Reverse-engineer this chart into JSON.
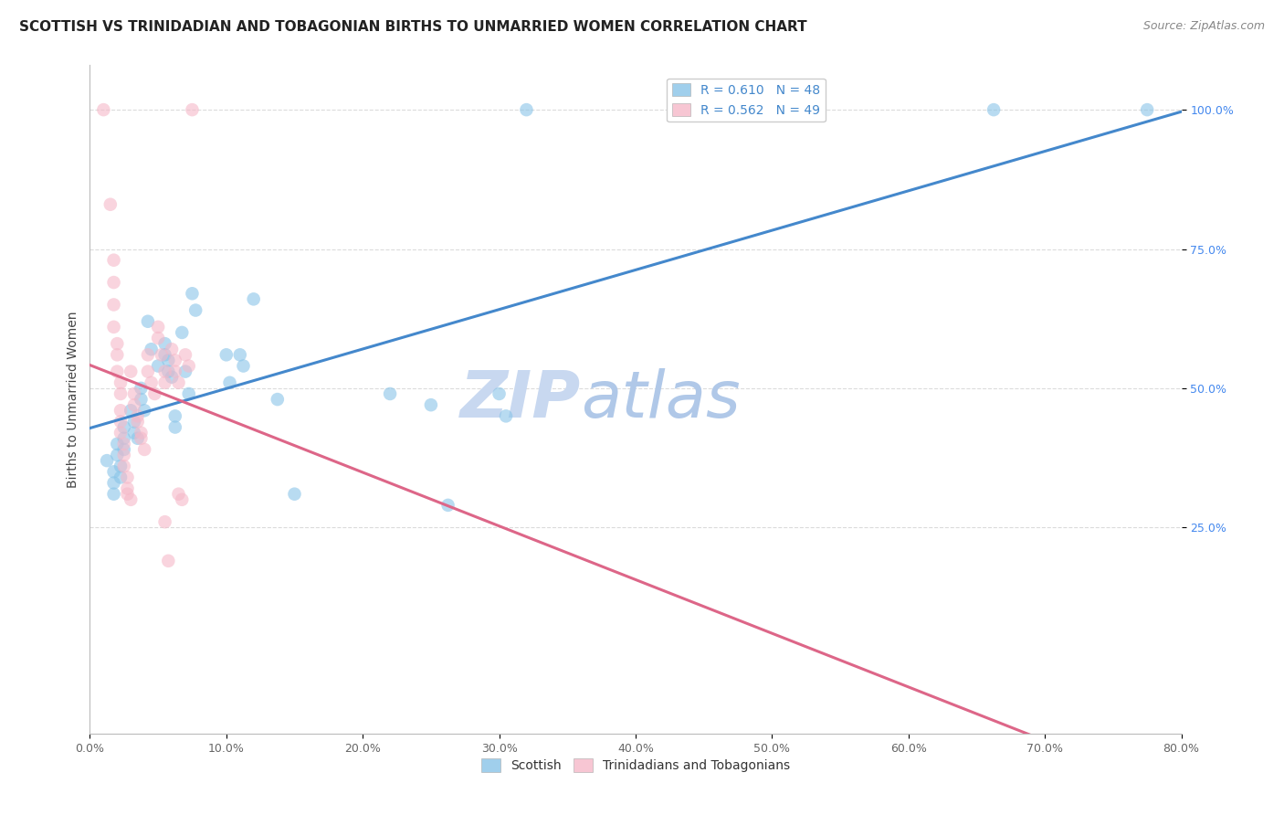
{
  "title": "SCOTTISH VS TRINIDADIAN AND TOBAGONIAN BIRTHS TO UNMARRIED WOMEN CORRELATION CHART",
  "source": "Source: ZipAtlas.com",
  "ylabel": "Births to Unmarried Women",
  "legend_labels": [
    "Scottish",
    "Trinidadians and Tobagonians"
  ],
  "legend_r_n": [
    {
      "R": "0.610",
      "N": "48"
    },
    {
      "R": "0.562",
      "N": "49"
    }
  ],
  "watermark_zip": "ZIP",
  "watermark_atlas": "atlas",
  "watermark_color": "#c8d8f0",
  "blue_color": "#89c4e8",
  "pink_color": "#f5b8c8",
  "blue_line_color": "#4488cc",
  "pink_line_color": "#dd6688",
  "scatter_alpha": 0.6,
  "scatter_size": 110,
  "blue_scatter": [
    [
      0.005,
      0.37
    ],
    [
      0.007,
      0.35
    ],
    [
      0.007,
      0.33
    ],
    [
      0.007,
      0.31
    ],
    [
      0.008,
      0.4
    ],
    [
      0.008,
      0.38
    ],
    [
      0.009,
      0.36
    ],
    [
      0.009,
      0.34
    ],
    [
      0.01,
      0.43
    ],
    [
      0.01,
      0.41
    ],
    [
      0.01,
      0.39
    ],
    [
      0.012,
      0.46
    ],
    [
      0.013,
      0.44
    ],
    [
      0.013,
      0.42
    ],
    [
      0.014,
      0.41
    ],
    [
      0.015,
      0.5
    ],
    [
      0.015,
      0.48
    ],
    [
      0.016,
      0.46
    ],
    [
      0.017,
      0.62
    ],
    [
      0.018,
      0.57
    ],
    [
      0.02,
      0.54
    ],
    [
      0.022,
      0.58
    ],
    [
      0.022,
      0.56
    ],
    [
      0.023,
      0.55
    ],
    [
      0.023,
      0.53
    ],
    [
      0.024,
      0.52
    ],
    [
      0.025,
      0.45
    ],
    [
      0.025,
      0.43
    ],
    [
      0.027,
      0.6
    ],
    [
      0.028,
      0.53
    ],
    [
      0.029,
      0.49
    ],
    [
      0.03,
      0.67
    ],
    [
      0.031,
      0.64
    ],
    [
      0.04,
      0.56
    ],
    [
      0.041,
      0.51
    ],
    [
      0.044,
      0.56
    ],
    [
      0.045,
      0.54
    ],
    [
      0.048,
      0.66
    ],
    [
      0.055,
      0.48
    ],
    [
      0.06,
      0.31
    ],
    [
      0.088,
      0.49
    ],
    [
      0.1,
      0.47
    ],
    [
      0.105,
      0.29
    ],
    [
      0.12,
      0.49
    ],
    [
      0.122,
      0.45
    ],
    [
      0.128,
      1.0
    ],
    [
      0.265,
      1.0
    ],
    [
      0.31,
      1.0
    ]
  ],
  "pink_scatter": [
    [
      0.004,
      1.0
    ],
    [
      0.006,
      0.83
    ],
    [
      0.007,
      0.73
    ],
    [
      0.007,
      0.69
    ],
    [
      0.007,
      0.65
    ],
    [
      0.007,
      0.61
    ],
    [
      0.008,
      0.58
    ],
    [
      0.008,
      0.56
    ],
    [
      0.008,
      0.53
    ],
    [
      0.009,
      0.51
    ],
    [
      0.009,
      0.49
    ],
    [
      0.009,
      0.46
    ],
    [
      0.009,
      0.44
    ],
    [
      0.009,
      0.42
    ],
    [
      0.01,
      0.4
    ],
    [
      0.01,
      0.38
    ],
    [
      0.01,
      0.36
    ],
    [
      0.011,
      0.34
    ],
    [
      0.011,
      0.32
    ],
    [
      0.011,
      0.31
    ],
    [
      0.012,
      0.3
    ],
    [
      0.012,
      0.53
    ],
    [
      0.013,
      0.49
    ],
    [
      0.013,
      0.47
    ],
    [
      0.014,
      0.45
    ],
    [
      0.014,
      0.44
    ],
    [
      0.015,
      0.42
    ],
    [
      0.015,
      0.41
    ],
    [
      0.016,
      0.39
    ],
    [
      0.017,
      0.56
    ],
    [
      0.017,
      0.53
    ],
    [
      0.018,
      0.51
    ],
    [
      0.019,
      0.49
    ],
    [
      0.02,
      0.61
    ],
    [
      0.02,
      0.59
    ],
    [
      0.021,
      0.56
    ],
    [
      0.022,
      0.53
    ],
    [
      0.022,
      0.51
    ],
    [
      0.022,
      0.26
    ],
    [
      0.023,
      0.19
    ],
    [
      0.024,
      0.57
    ],
    [
      0.025,
      0.55
    ],
    [
      0.025,
      0.53
    ],
    [
      0.026,
      0.51
    ],
    [
      0.026,
      0.31
    ],
    [
      0.027,
      0.3
    ],
    [
      0.028,
      0.56
    ],
    [
      0.029,
      0.54
    ],
    [
      0.03,
      1.0
    ]
  ],
  "xlim": [
    0.0,
    0.32
  ],
  "ylim": [
    -0.12,
    1.08
  ],
  "x_tick_vals": [
    0.0,
    0.04,
    0.08,
    0.12,
    0.16,
    0.2,
    0.24,
    0.28,
    0.32
  ],
  "x_tick_labels": [
    "0.0%",
    "10.0%",
    "20.0%",
    "30.0%",
    "40.0%",
    "50.0%",
    "60.0%",
    "70.0%",
    "80.0%"
  ],
  "y_tick_vals": [
    0.25,
    0.5,
    0.75,
    1.0
  ],
  "y_tick_labels": [
    "25.0%",
    "50.0%",
    "75.0%",
    "100.0%"
  ],
  "title_fontsize": 11,
  "source_fontsize": 9,
  "axis_label_fontsize": 10,
  "tick_fontsize": 9,
  "legend_fontsize": 10,
  "watermark_fontsize_zip": 52,
  "watermark_fontsize_atlas": 52,
  "grid_color": "#cccccc",
  "grid_alpha": 0.7,
  "right_tick_color": "#4488ee",
  "tick_color": "#666666"
}
